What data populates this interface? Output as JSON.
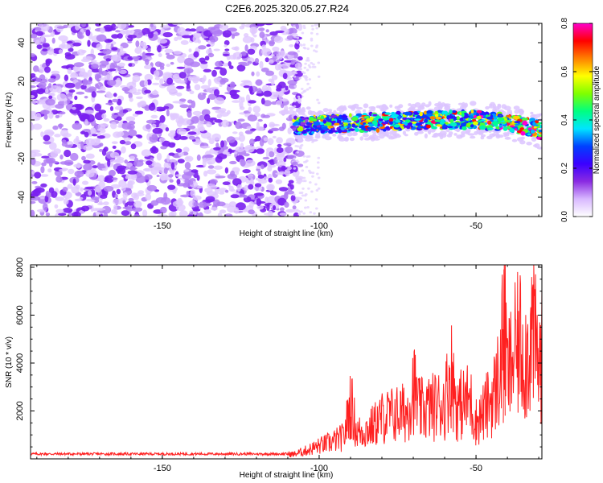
{
  "figure_title": "C2E6.2025.320.05.27.R24",
  "chart_data": [
    {
      "type": "heatmap",
      "title": "C2E6.2025.320.05.27.R24",
      "xlabel": "Height of straight line (km)",
      "ylabel": "Frequency (Hz)",
      "xlim": [
        -192,
        -29
      ],
      "ylim": [
        -50,
        50
      ],
      "x_ticks": [
        -150,
        -100,
        -50
      ],
      "y_ticks": [
        -40,
        -20,
        0,
        20,
        40
      ],
      "description_of_content": "diffuse purple noise for heights below about -108 km; narrow band near 0 Hz from about -108 km to -29 km with peak amplitude up to about 0.8",
      "noise_region_x": [
        -192,
        -108
      ],
      "signal_band": {
        "x_range": [
          -108,
          -29
        ],
        "center_freq_points": [
          [
            -108,
            -3
          ],
          [
            -95,
            -2
          ],
          [
            -80,
            -1
          ],
          [
            -65,
            0
          ],
          [
            -50,
            0
          ],
          [
            -40,
            -1
          ],
          [
            -32,
            -4
          ],
          [
            -29,
            -6
          ]
        ],
        "half_width_hz": 4
      },
      "colorbar": {
        "label": "Normalized spectral amplitude",
        "range": [
          0.0,
          0.8
        ],
        "ticks": [
          "0.0",
          "0.2",
          "0.4",
          "0.6",
          "0.8"
        ],
        "colors": [
          "#ffffff",
          "#d8b8ff",
          "#8a2be2",
          "#3b00ff",
          "#0040ff",
          "#00e5ff",
          "#00ff80",
          "#7fff00",
          "#ffff00",
          "#ff8000",
          "#ff0000",
          "#ff00cc"
        ]
      }
    },
    {
      "type": "line",
      "xlabel": "Height of straight line (km)",
      "ylabel": "SNR (10 * v/v)",
      "xlim": [
        -192,
        -29
      ],
      "ylim": [
        0,
        8100
      ],
      "x_ticks": [
        -150,
        -100,
        -50
      ],
      "y_ticks": [
        2000,
        4000,
        6000,
        8000
      ],
      "color": "#ff2020",
      "series": [
        {
          "name": "SNR",
          "x": [
            -192,
            -180,
            -160,
            -140,
            -120,
            -108,
            -104,
            -100,
            -96,
            -92,
            -90,
            -88,
            -84,
            -80,
            -76,
            -72,
            -70,
            -68,
            -64,
            -60,
            -58,
            -56,
            -52,
            -50,
            -48,
            -44,
            -42,
            -41,
            -40,
            -38,
            -36,
            -34,
            -32,
            -30,
            -29
          ],
          "values": [
            200,
            200,
            200,
            200,
            220,
            250,
            450,
            700,
            900,
            1200,
            3100,
            1400,
            1600,
            2200,
            2400,
            2500,
            4000,
            2600,
            2800,
            3000,
            4800,
            2800,
            3200,
            2000,
            2400,
            3600,
            5000,
            8100,
            4500,
            5500,
            6300,
            5500,
            7000,
            5000,
            5600
          ]
        }
      ]
    }
  ]
}
